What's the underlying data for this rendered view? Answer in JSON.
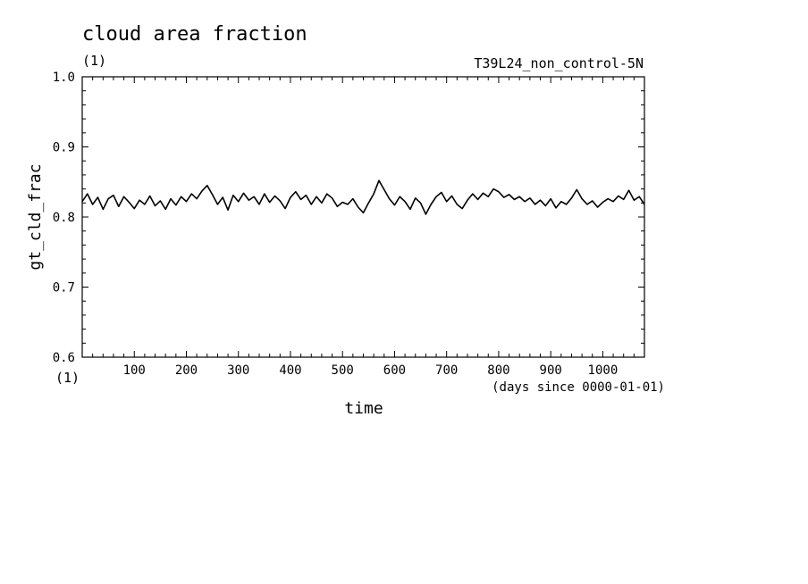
{
  "chart_data": {
    "type": "line",
    "title": "cloud area fraction",
    "units_label_y": "(1)",
    "units_label_x": "(1)",
    "experiment": "T39L24_non_control-5N",
    "xlabel": "time",
    "xunits": "(days since 0000-01-01)",
    "ylabel": "gt_cld_frac",
    "xlim": [
      0,
      1080
    ],
    "ylim": [
      0.6,
      1.0
    ],
    "x_ticks": [
      100,
      200,
      300,
      400,
      500,
      600,
      700,
      800,
      900,
      1000
    ],
    "x_tick_labels": [
      "100",
      "200",
      "300",
      "400",
      "500",
      "600",
      "700",
      "800",
      "900",
      "1000"
    ],
    "y_ticks": [
      0.6,
      0.7,
      0.8,
      0.9,
      1.0
    ],
    "y_tick_labels": [
      "0.6",
      "0.7",
      "0.8",
      "0.9",
      "1.0"
    ],
    "series": [
      {
        "color": "#000000",
        "x": [
          0,
          10,
          20,
          30,
          40,
          50,
          60,
          70,
          80,
          90,
          100,
          110,
          120,
          130,
          140,
          150,
          160,
          170,
          180,
          190,
          200,
          210,
          220,
          230,
          240,
          250,
          260,
          270,
          280,
          290,
          300,
          310,
          320,
          330,
          340,
          350,
          360,
          370,
          380,
          390,
          400,
          410,
          420,
          430,
          440,
          450,
          460,
          470,
          480,
          490,
          500,
          510,
          520,
          530,
          540,
          550,
          560,
          570,
          580,
          590,
          600,
          610,
          620,
          630,
          640,
          650,
          660,
          670,
          680,
          690,
          700,
          710,
          720,
          730,
          740,
          750,
          760,
          770,
          780,
          790,
          800,
          810,
          820,
          830,
          840,
          850,
          860,
          870,
          880,
          890,
          900,
          910,
          920,
          930,
          940,
          950,
          960,
          970,
          980,
          990,
          1000,
          1010,
          1020,
          1030,
          1040,
          1050,
          1060,
          1070,
          1080
        ],
        "values": [
          0.822,
          0.833,
          0.818,
          0.828,
          0.811,
          0.826,
          0.831,
          0.815,
          0.829,
          0.821,
          0.812,
          0.824,
          0.818,
          0.83,
          0.816,
          0.823,
          0.811,
          0.826,
          0.817,
          0.829,
          0.822,
          0.833,
          0.826,
          0.837,
          0.845,
          0.832,
          0.818,
          0.828,
          0.81,
          0.831,
          0.822,
          0.834,
          0.824,
          0.829,
          0.818,
          0.833,
          0.821,
          0.83,
          0.823,
          0.812,
          0.828,
          0.836,
          0.825,
          0.831,
          0.818,
          0.829,
          0.82,
          0.833,
          0.827,
          0.815,
          0.821,
          0.818,
          0.826,
          0.814,
          0.806,
          0.82,
          0.833,
          0.852,
          0.839,
          0.826,
          0.817,
          0.829,
          0.822,
          0.811,
          0.827,
          0.82,
          0.804,
          0.818,
          0.829,
          0.835,
          0.822,
          0.83,
          0.818,
          0.812,
          0.824,
          0.833,
          0.825,
          0.834,
          0.829,
          0.84,
          0.836,
          0.828,
          0.832,
          0.825,
          0.829,
          0.822,
          0.827,
          0.818,
          0.824,
          0.816,
          0.826,
          0.813,
          0.822,
          0.818,
          0.827,
          0.839,
          0.826,
          0.818,
          0.823,
          0.814,
          0.821,
          0.826,
          0.822,
          0.83,
          0.825,
          0.838,
          0.824,
          0.829,
          0.818
        ]
      }
    ]
  }
}
